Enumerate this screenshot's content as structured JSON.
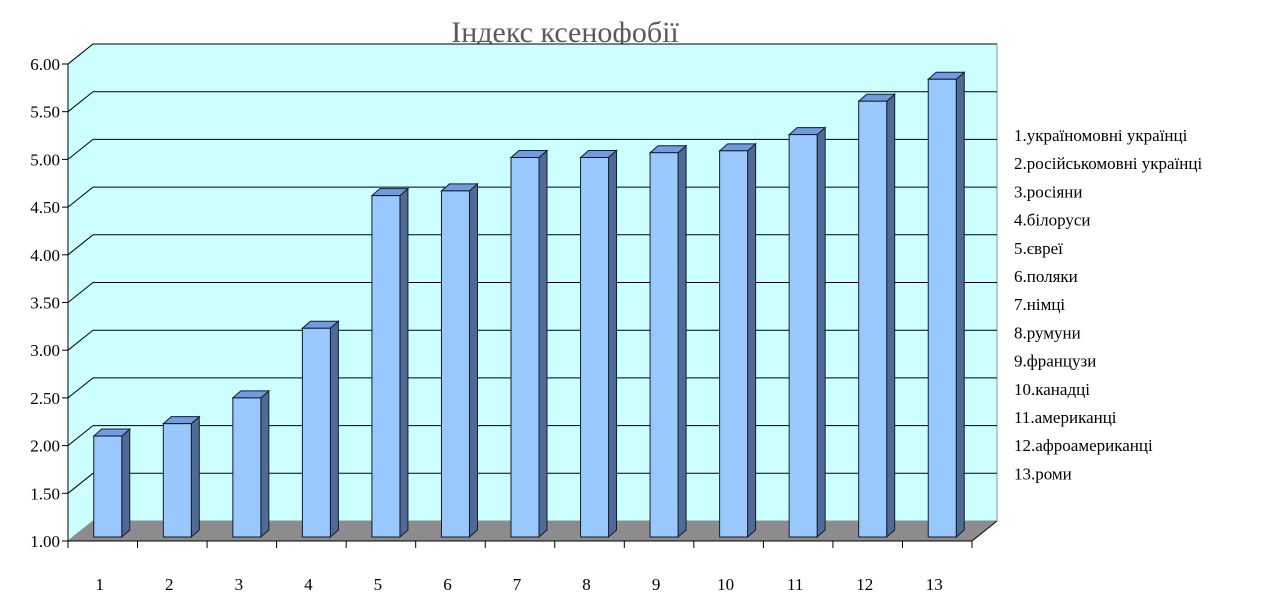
{
  "chart_data": {
    "type": "bar",
    "title": "Індекс ксенофобії",
    "categories": [
      "1",
      "2",
      "3",
      "4",
      "5",
      "6",
      "7",
      "8",
      "9",
      "10",
      "11",
      "12",
      "13"
    ],
    "values": [
      2.1,
      2.23,
      2.5,
      3.23,
      4.62,
      4.67,
      5.02,
      5.02,
      5.07,
      5.09,
      5.26,
      5.61,
      5.84
    ],
    "ylim": [
      1.0,
      6.0
    ],
    "yticks": [
      "1.00",
      "1.50",
      "2.00",
      "2.50",
      "3.00",
      "3.50",
      "4.00",
      "4.50",
      "5.00",
      "5.50",
      "6.00"
    ],
    "legend_position": "right",
    "legend": [
      "1.україномовні українці",
      "2.російськомовні українці",
      "3.росіяни",
      "4.білоруси",
      "5.євреї",
      "6.поляки",
      "7.німці",
      "8.румуни",
      "9.французи",
      "10.канадці",
      "11.американці",
      "12.афроамериканці",
      "13.роми"
    ],
    "grid": true,
    "style": "3d",
    "colors": {
      "bar_front": "#99c8ff",
      "bar_side": "#4e6a96",
      "bar_top": "#6f9be0",
      "wall": "#ccffff",
      "floor": "#8c8c8c",
      "grid": "#000000"
    }
  }
}
